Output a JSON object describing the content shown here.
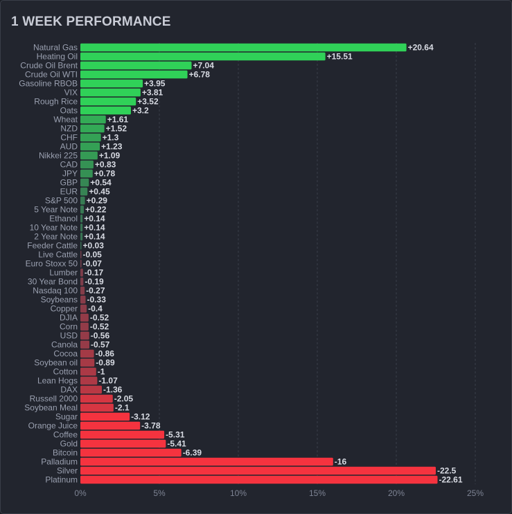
{
  "chart_data": {
    "type": "bar",
    "orientation": "horizontal",
    "title": "1 WEEK PERFORMANCE",
    "xlabel": "",
    "ylabel": "",
    "xlim": [
      0,
      25
    ],
    "x_ticks": [
      "0%",
      "5%",
      "10%",
      "15%",
      "20%",
      "25%"
    ],
    "x_tick_values": [
      0,
      5,
      10,
      15,
      20,
      25
    ],
    "grid": true,
    "bar_length": "absolute value",
    "colors": {
      "positive": "#30d158",
      "negative": "#f5333f",
      "neutral": "#3c4350"
    },
    "categories": [
      "Natural Gas",
      "Heating Oil",
      "Crude Oil Brent",
      "Crude Oil WTI",
      "Gasoline RBOB",
      "VIX",
      "Rough Rice",
      "Oats",
      "Wheat",
      "NZD",
      "CHF",
      "AUD",
      "Nikkei 225",
      "CAD",
      "JPY",
      "GBP",
      "EUR",
      "S&P 500",
      "5 Year Note",
      "Ethanol",
      "10 Year Note",
      "2 Year Note",
      "Feeder Cattle",
      "Live Cattle",
      "Euro Stoxx 50",
      "Lumber",
      "30 Year Bond",
      "Nasdaq 100",
      "Soybeans",
      "Copper",
      "DJIA",
      "Corn",
      "USD",
      "Canola",
      "Cocoa",
      "Soybean oil",
      "Cotton",
      "Lean Hogs",
      "DAX",
      "Russell 2000",
      "Soybean Meal",
      "Sugar",
      "Orange Juice",
      "Coffee",
      "Gold",
      "Bitcoin",
      "Palladium",
      "Silver",
      "Platinum"
    ],
    "values": [
      20.64,
      15.51,
      7.04,
      6.78,
      3.95,
      3.81,
      3.52,
      3.2,
      1.61,
      1.52,
      1.3,
      1.23,
      1.09,
      0.83,
      0.78,
      0.54,
      0.45,
      0.29,
      0.22,
      0.14,
      0.14,
      0.14,
      0.03,
      -0.05,
      -0.07,
      -0.17,
      -0.19,
      -0.27,
      -0.33,
      -0.4,
      -0.52,
      -0.52,
      -0.56,
      -0.57,
      -0.86,
      -0.89,
      -1,
      -1.07,
      -1.36,
      -2.05,
      -2.1,
      -3.12,
      -3.78,
      -5.31,
      -5.41,
      -6.39,
      -16,
      -22.5,
      -22.61
    ],
    "value_labels": [
      "+20.64",
      "+15.51",
      "+7.04",
      "+6.78",
      "+3.95",
      "+3.81",
      "+3.52",
      "+3.2",
      "+1.61",
      "+1.52",
      "+1.3",
      "+1.23",
      "+1.09",
      "+0.83",
      "+0.78",
      "+0.54",
      "+0.45",
      "+0.29",
      "+0.22",
      "+0.14",
      "+0.14",
      "+0.14",
      "+0.03",
      "-0.05",
      "-0.07",
      "-0.17",
      "-0.19",
      "-0.27",
      "-0.33",
      "-0.4",
      "-0.52",
      "-0.52",
      "-0.56",
      "-0.57",
      "-0.86",
      "-0.89",
      "-1",
      "-1.07",
      "-1.36",
      "-2.05",
      "-2.1",
      "-3.12",
      "-3.78",
      "-5.31",
      "-5.41",
      "-6.39",
      "-16",
      "-22.5",
      "-22.61"
    ]
  }
}
